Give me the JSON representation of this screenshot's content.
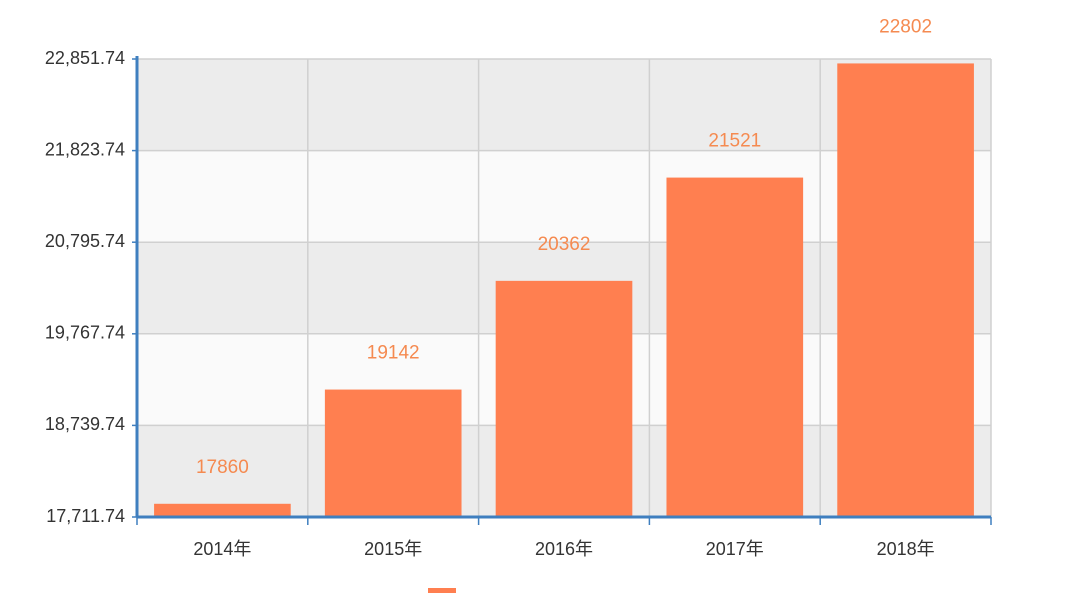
{
  "chart_data": {
    "type": "bar",
    "categories": [
      "2014年",
      "2015年",
      "2016年",
      "2017年",
      "2018年"
    ],
    "values": [
      17860,
      19142,
      20362,
      21521,
      22802
    ],
    "color": "#ff7f50",
    "ylim": [
      17711.74,
      22851.74
    ],
    "yticks": [
      {
        "value": 17711.74,
        "label": "17,711.74"
      },
      {
        "value": 18739.74,
        "label": "18,739.74"
      },
      {
        "value": 19767.74,
        "label": "19,767.74"
      },
      {
        "value": 20795.74,
        "label": "20,795.74"
      },
      {
        "value": 21823.74,
        "label": "21,823.74"
      },
      {
        "value": 22851.74,
        "label": "22,851.74"
      }
    ],
    "grid": true
  }
}
